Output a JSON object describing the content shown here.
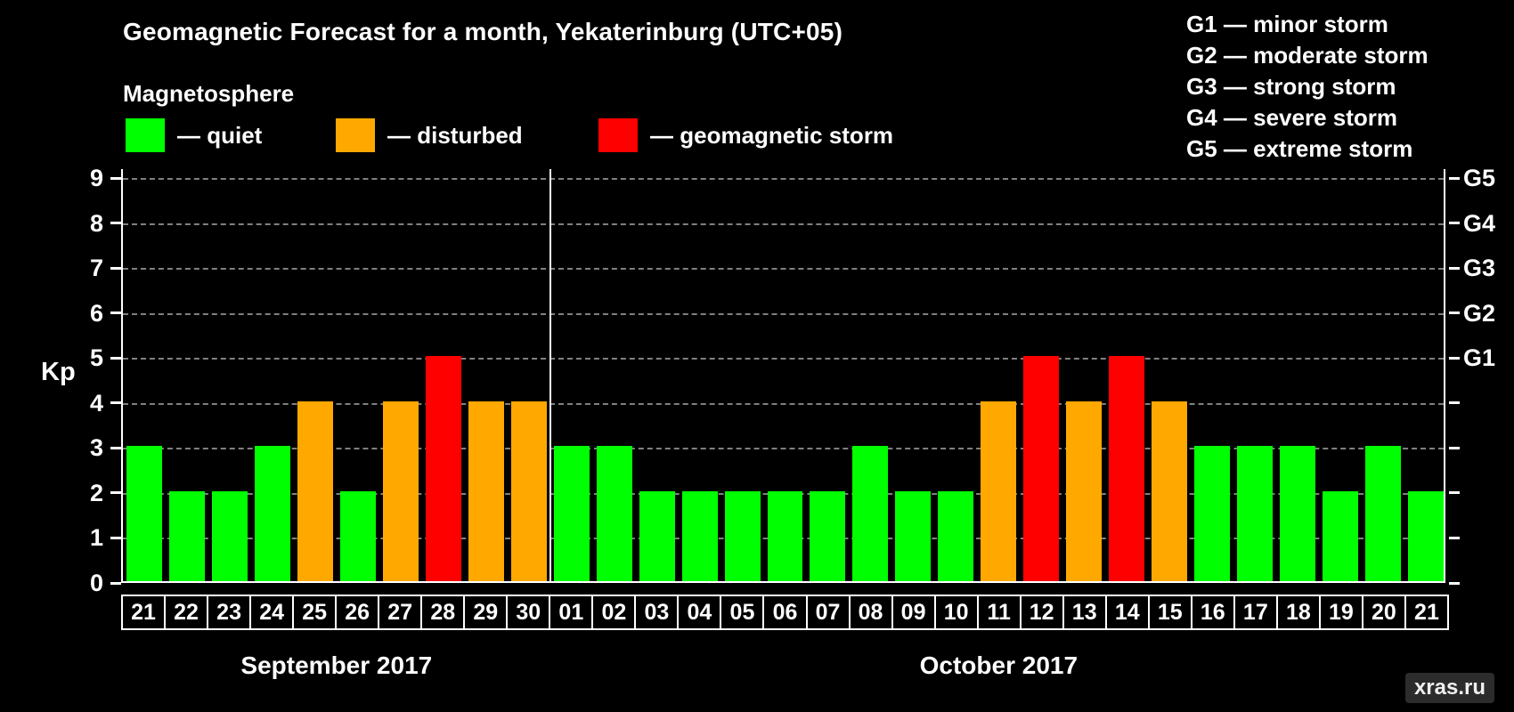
{
  "title": "Geomagnetic Forecast for a month, Yekaterinburg (UTC+05)",
  "legend": {
    "heading": "Magnetosphere",
    "items": [
      {
        "name": "quiet",
        "label": "— quiet",
        "color": "#00ff00"
      },
      {
        "name": "disturbed",
        "label": "— disturbed",
        "color": "#ffa800"
      },
      {
        "name": "storm",
        "label": "— geomagnetic storm",
        "color": "#ff0000"
      }
    ]
  },
  "g_scale_legend": [
    "G1 — minor storm",
    "G2 — moderate storm",
    "G3 — strong storm",
    "G4 — severe storm",
    "G5 — extreme storm"
  ],
  "watermark": "xras.ru",
  "chart_data": {
    "type": "bar",
    "title": "Geomagnetic Forecast for a month, Yekaterinburg (UTC+05)",
    "ylabel": "Kp",
    "ylim": [
      0,
      9
    ],
    "yticks": [
      0,
      1,
      2,
      3,
      4,
      5,
      6,
      7,
      8,
      9
    ],
    "grid": "dashed horizontal gridline at every integer Kp level",
    "legend_position": "top",
    "right_axis": [
      {
        "label": "G1",
        "kp": 5
      },
      {
        "label": "G2",
        "kp": 6
      },
      {
        "label": "G3",
        "kp": 7
      },
      {
        "label": "G4",
        "kp": 8
      },
      {
        "label": "G5",
        "kp": 9
      }
    ],
    "status_colors": {
      "quiet": "#00ff00",
      "disturbed": "#ffa800",
      "storm": "#ff0000"
    },
    "months": [
      {
        "label": "September 2017",
        "days": [
          "21",
          "22",
          "23",
          "24",
          "25",
          "26",
          "27",
          "28",
          "29",
          "30"
        ],
        "values": [
          3,
          2,
          2,
          3,
          4,
          2,
          4,
          5,
          4,
          4
        ],
        "status": [
          "quiet",
          "quiet",
          "quiet",
          "quiet",
          "disturbed",
          "quiet",
          "disturbed",
          "storm",
          "disturbed",
          "disturbed"
        ]
      },
      {
        "label": "October 2017",
        "days": [
          "01",
          "02",
          "03",
          "04",
          "05",
          "06",
          "07",
          "08",
          "09",
          "10",
          "11",
          "12",
          "13",
          "14",
          "15",
          "16",
          "17",
          "18",
          "19",
          "20",
          "21"
        ],
        "values": [
          3,
          3,
          2,
          2,
          2,
          2,
          2,
          3,
          2,
          2,
          4,
          5,
          4,
          5,
          4,
          3,
          3,
          3,
          2,
          3,
          2
        ],
        "status": [
          "quiet",
          "quiet",
          "quiet",
          "quiet",
          "quiet",
          "quiet",
          "quiet",
          "quiet",
          "quiet",
          "quiet",
          "disturbed",
          "storm",
          "disturbed",
          "storm",
          "disturbed",
          "quiet",
          "quiet",
          "quiet",
          "quiet",
          "quiet",
          "quiet"
        ]
      }
    ]
  }
}
